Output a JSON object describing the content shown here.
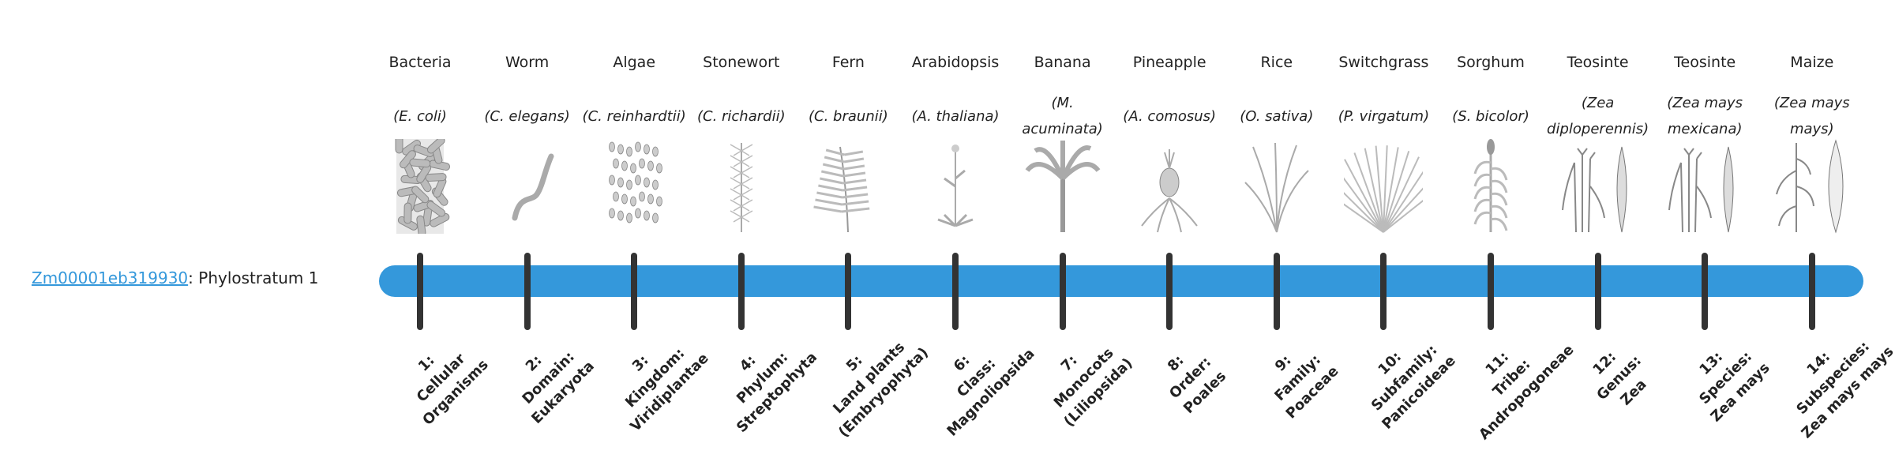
{
  "gene": {
    "id": "Zm00001eb319930",
    "suffix": ": Phylostratum 1"
  },
  "colors": {
    "bar": "#3498db",
    "tick": "#333333",
    "link": "#3498db"
  },
  "strata": [
    {
      "name": "Bacteria",
      "sci": "E. coli",
      "icon": "bacteria-icon",
      "rank": [
        "1:",
        "Cellular",
        "Organisms"
      ]
    },
    {
      "name": "Worm",
      "sci": "C. elegans",
      "icon": "worm-icon",
      "rank": [
        "2:",
        "Domain:",
        "Eukaryota"
      ]
    },
    {
      "name": "Algae",
      "sci": "C. reinhardtii",
      "icon": "algae-icon",
      "rank": [
        "3:",
        "Kingdom:",
        "Viridiplantae"
      ]
    },
    {
      "name": "Stonewort",
      "sci": "C. richardii",
      "icon": "stonewort-icon",
      "rank": [
        "4:",
        "Phylum:",
        "Streptophyta"
      ]
    },
    {
      "name": "Fern",
      "sci": "C. braunii",
      "icon": "fern-icon",
      "rank": [
        "5:",
        "Land plants",
        "(Embryophyta)"
      ]
    },
    {
      "name": "Arabidopsis",
      "sci": "A. thaliana",
      "icon": "arabidopsis-icon",
      "rank": [
        "6:",
        "Class:",
        "Magnoliopsida"
      ]
    },
    {
      "name": "Banana",
      "sci": "M. acuminata",
      "icon": "banana-icon",
      "rank": [
        "7:",
        "Monocots",
        "(Liliopsida)"
      ]
    },
    {
      "name": "Pineapple",
      "sci": "A. comosus",
      "icon": "pineapple-icon",
      "rank": [
        "8:",
        "Order:",
        "Poales"
      ]
    },
    {
      "name": "Rice",
      "sci": "O. sativa",
      "icon": "rice-icon",
      "rank": [
        "9:",
        "Family:",
        "Poaceae"
      ]
    },
    {
      "name": "Switchgrass",
      "sci": "P. virgatum",
      "icon": "switchgrass-icon",
      "rank": [
        "10:",
        "Subfamily:",
        "Panicoideae"
      ]
    },
    {
      "name": "Sorghum",
      "sci": "S. bicolor",
      "icon": "sorghum-icon",
      "rank": [
        "11:",
        "Tribe:",
        "Andropogoneae"
      ]
    },
    {
      "name": "Teosinte",
      "sci": "Zea diploperennis",
      "icon": "teosinte-icon",
      "rank": [
        "12:",
        "Genus:",
        "Zea"
      ]
    },
    {
      "name": "Teosinte",
      "sci": "Zea mays mexicana",
      "icon": "teosinte-icon",
      "rank": [
        "13:",
        "Species:",
        "Zea mays"
      ]
    },
    {
      "name": "Maize",
      "sci": "Zea mays mays",
      "icon": "maize-icon",
      "rank": [
        "14:",
        "Subspecies:",
        "Zea mays mays"
      ]
    }
  ]
}
